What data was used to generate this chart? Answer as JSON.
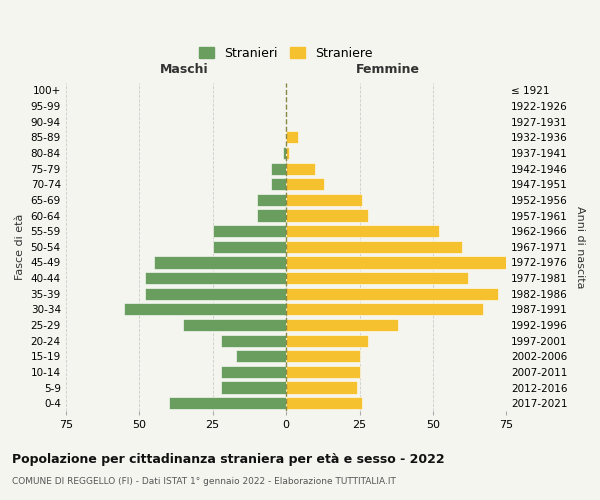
{
  "age_groups": [
    "0-4",
    "5-9",
    "10-14",
    "15-19",
    "20-24",
    "25-29",
    "30-34",
    "35-39",
    "40-44",
    "45-49",
    "50-54",
    "55-59",
    "60-64",
    "65-69",
    "70-74",
    "75-79",
    "80-84",
    "85-89",
    "90-94",
    "95-99",
    "100+"
  ],
  "birth_years": [
    "2017-2021",
    "2012-2016",
    "2007-2011",
    "2002-2006",
    "1997-2001",
    "1992-1996",
    "1987-1991",
    "1982-1986",
    "1977-1981",
    "1972-1976",
    "1967-1971",
    "1962-1966",
    "1957-1961",
    "1952-1956",
    "1947-1951",
    "1942-1946",
    "1937-1941",
    "1932-1936",
    "1927-1931",
    "1922-1926",
    "≤ 1921"
  ],
  "maschi": [
    40,
    22,
    22,
    17,
    22,
    35,
    55,
    48,
    48,
    45,
    25,
    25,
    10,
    10,
    5,
    5,
    1,
    0,
    0,
    0,
    0
  ],
  "femmine": [
    26,
    24,
    25,
    25,
    28,
    38,
    67,
    72,
    62,
    75,
    60,
    52,
    28,
    26,
    13,
    10,
    1,
    4,
    0,
    0,
    0
  ],
  "maschi_color": "#6a9e5e",
  "femmine_color": "#f5c12e",
  "background_color": "#f5f5f0",
  "grid_color": "#cccccc",
  "dashed_line_color": "#888844",
  "xlim": 75,
  "title": "Popolazione per cittadinanza straniera per età e sesso - 2022",
  "subtitle": "COMUNE DI REGGELLO (FI) - Dati ISTAT 1° gennaio 2022 - Elaborazione TUTTITALIA.IT",
  "xlabel_left": "Maschi",
  "xlabel_right": "Femmine",
  "ylabel_left": "Fasce di età",
  "ylabel_right": "Anni di nascita",
  "legend_maschi": "Stranieri",
  "legend_femmine": "Straniere"
}
